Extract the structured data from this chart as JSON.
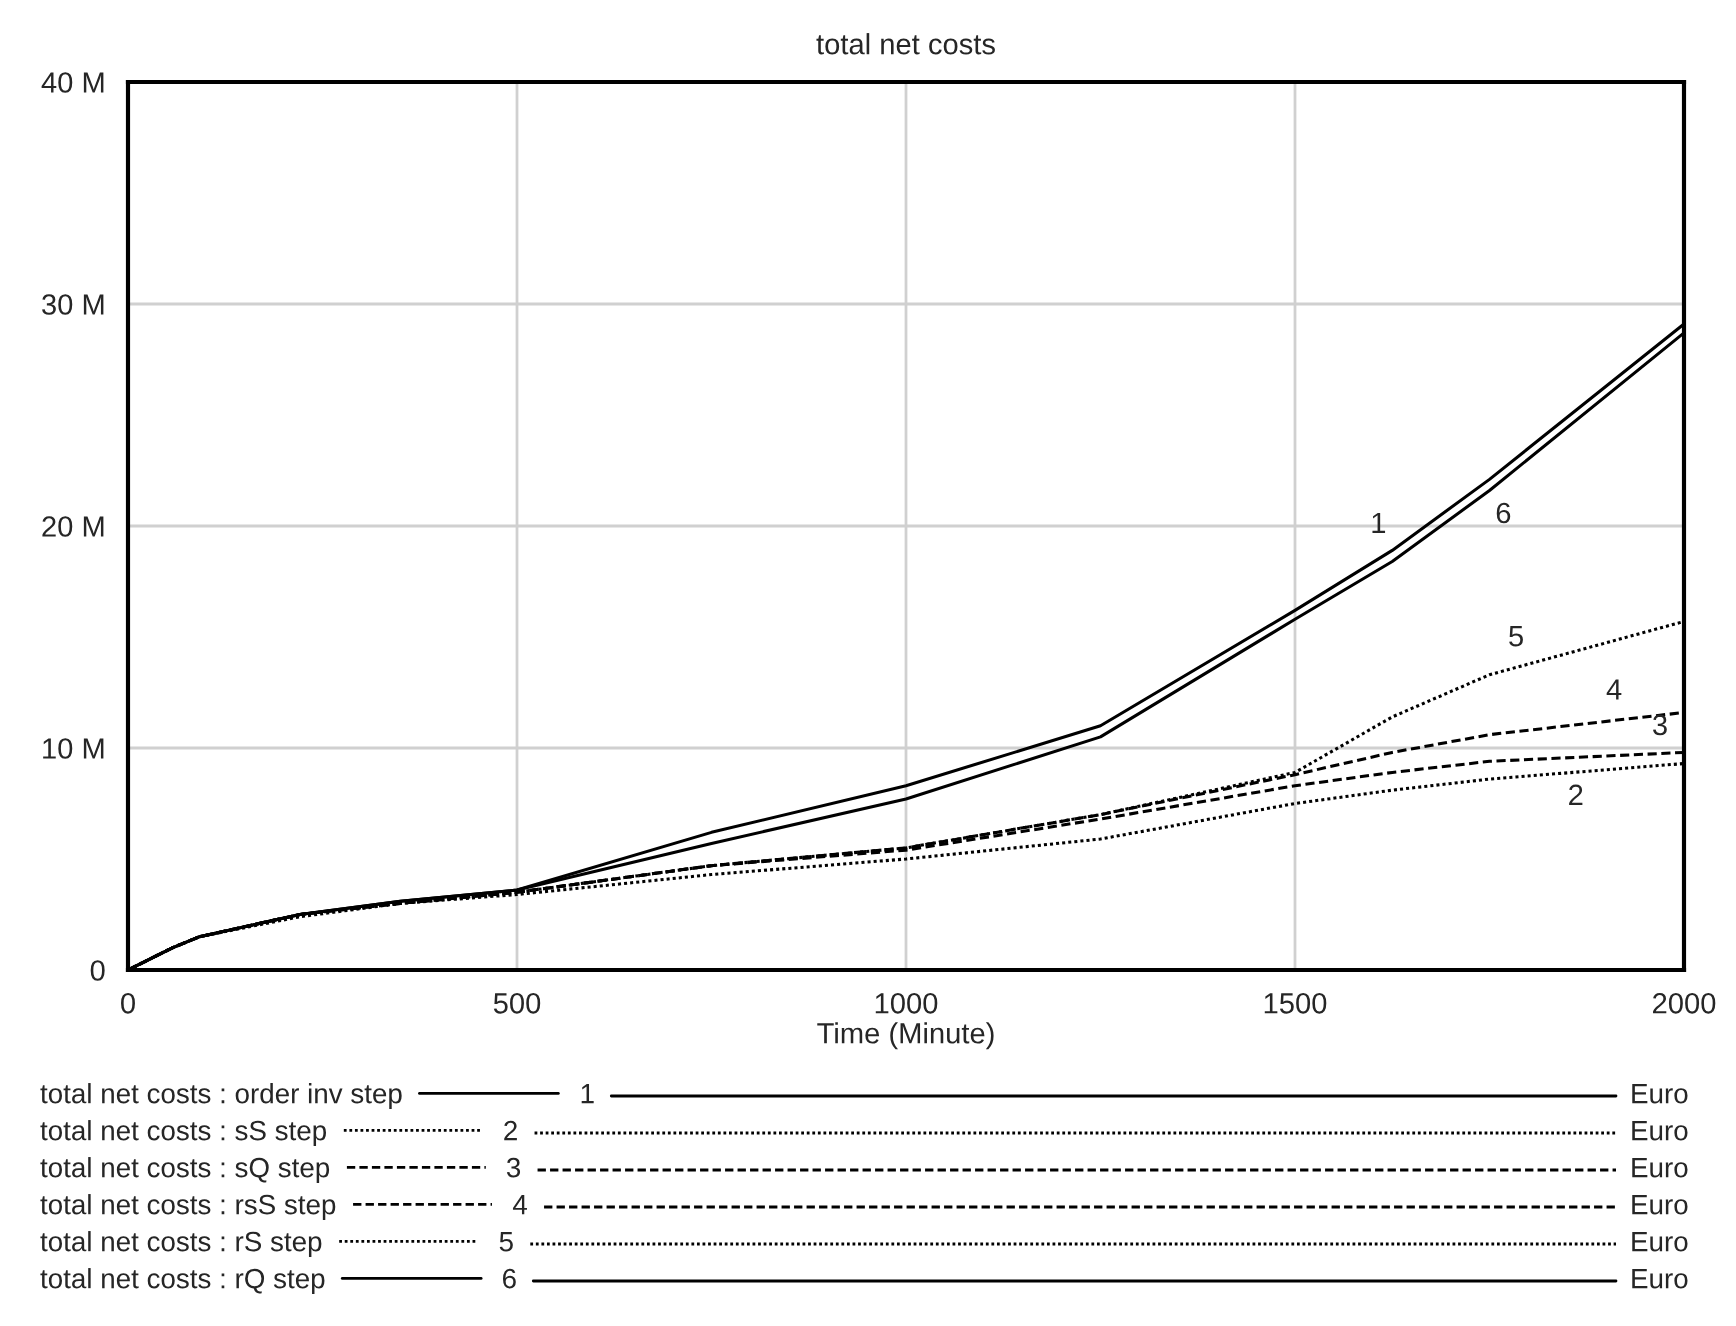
{
  "chart_data": {
    "type": "line",
    "title": "total net costs",
    "xlabel": "Time (Minute)",
    "x": [
      0,
      57,
      92,
      221,
      350,
      500,
      750,
      1000,
      1250,
      1500,
      1625,
      1750,
      2000
    ],
    "series": [
      {
        "name": "total net costs : order inv step",
        "color": "#000000",
        "line_style": "solid",
        "values": [
          0,
          1.0,
          1.5,
          2.5,
          3.1,
          3.6,
          6.2,
          8.3,
          11.0,
          16.2,
          18.9,
          22.1,
          29.1
        ]
      },
      {
        "name": "total net costs : sS step",
        "color": "#000000",
        "line_style": "dotted",
        "values": [
          0,
          1.0,
          1.5,
          2.4,
          3.0,
          3.4,
          4.3,
          5.0,
          5.9,
          7.5,
          8.1,
          8.6,
          9.3
        ]
      },
      {
        "name": "total net costs : sQ step",
        "color": "#000000",
        "line_style": "dashed",
        "values": [
          0,
          1.0,
          1.5,
          2.5,
          3.0,
          3.5,
          4.7,
          5.4,
          6.8,
          8.3,
          8.9,
          9.4,
          9.8
        ]
      },
      {
        "name": "total net costs : rsS step",
        "color": "#000000",
        "line_style": "dashed",
        "values": [
          0,
          1.0,
          1.5,
          2.5,
          3.0,
          3.5,
          4.7,
          5.5,
          7.0,
          8.8,
          9.8,
          10.6,
          11.6
        ]
      },
      {
        "name": "total net costs : rS step",
        "color": "#000000",
        "line_style": "dotted",
        "values": [
          0,
          1.0,
          1.5,
          2.5,
          3.0,
          3.5,
          4.7,
          5.5,
          7.0,
          8.9,
          11.4,
          13.3,
          15.7
        ]
      },
      {
        "name": "total net costs : rQ step",
        "color": "#000000",
        "line_style": "solid",
        "values": [
          0,
          1.0,
          1.5,
          2.5,
          3.1,
          3.6,
          5.7,
          7.7,
          10.5,
          15.8,
          18.4,
          21.6,
          28.7
        ]
      }
    ],
    "annotations": [
      {
        "text": "1",
        "x": 1625,
        "y": 18.9
      },
      {
        "text": "2",
        "x": 1843,
        "y": 8.9
      },
      {
        "text": "3",
        "x": 1987,
        "y": 9.8
      },
      {
        "text": "4",
        "x": 1928,
        "y": 11.4
      },
      {
        "text": "5",
        "x": 1802,
        "y": 13.8
      },
      {
        "text": "6",
        "x": 1750,
        "y": 21.6
      },
      "Euro",
      "Euro",
      "Euro",
      "Euro",
      "Euro",
      "Euro"
    ],
    "xlim": [
      0,
      2000
    ],
    "xticks": [
      0,
      500,
      1000,
      1500,
      2000
    ],
    "ylim": [
      0,
      40
    ],
    "yticks": [
      {
        "value": 0,
        "label": "0"
      },
      {
        "value": 10,
        "label": "10 M"
      },
      {
        "value": 20,
        "label": "20 M"
      },
      {
        "value": 30,
        "label": "30 M"
      },
      {
        "value": 40,
        "label": "40 M"
      }
    ],
    "grid": true,
    "legend": "bottom"
  }
}
